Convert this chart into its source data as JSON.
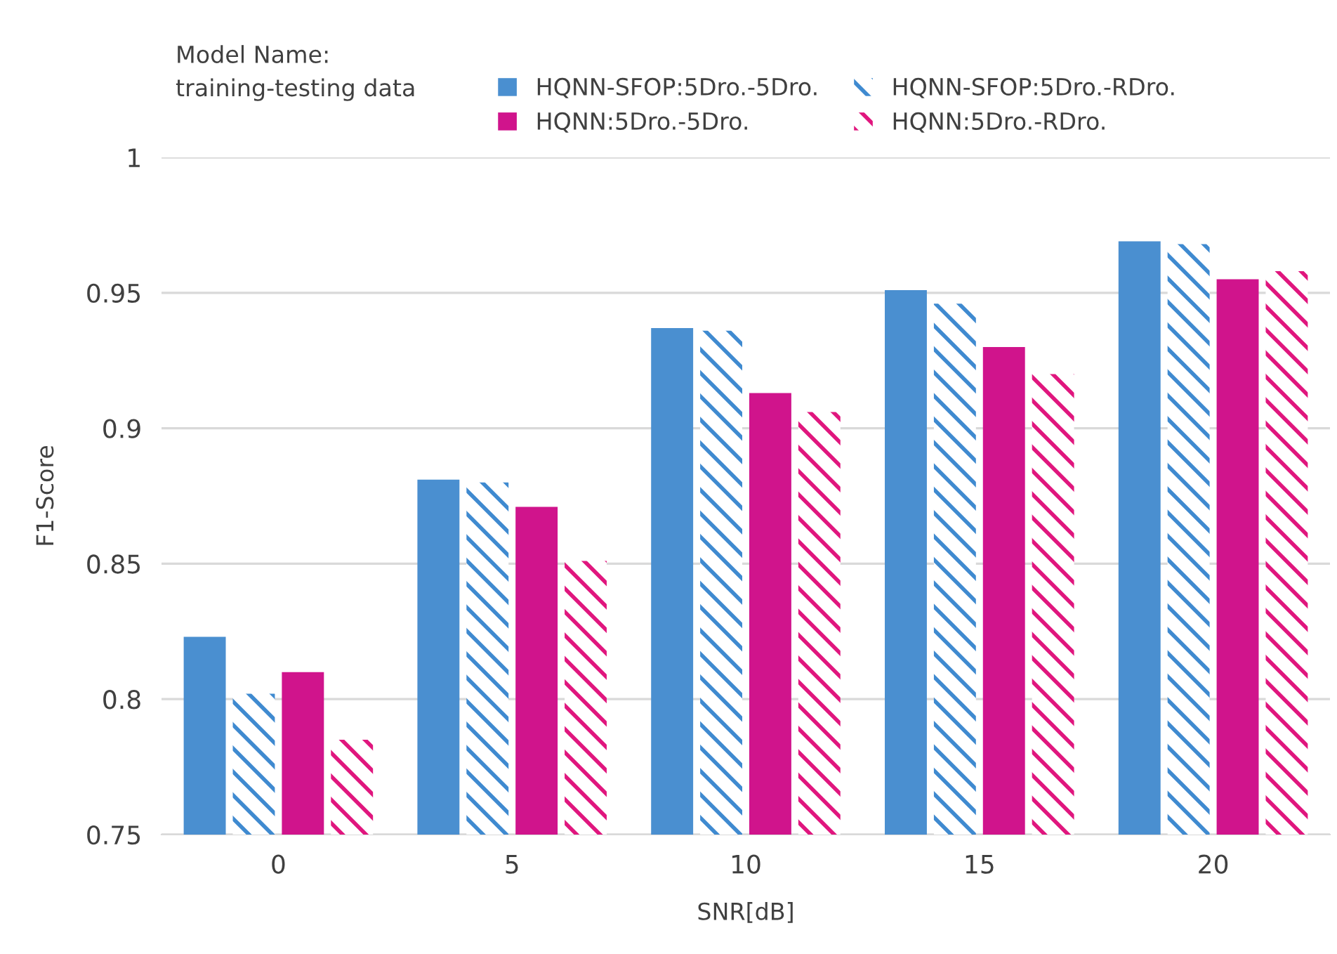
{
  "chart_data": {
    "type": "bar",
    "xlabel": "SNR[dB]",
    "ylabel": "F1-Score",
    "legend_title": "Model Name:\ntraining-testing data",
    "categories": [
      "0",
      "5",
      "10",
      "15",
      "20"
    ],
    "series": [
      {
        "name": "HQNN-SFOP:5Dro.-5Dro.",
        "color": "#4a8fd0",
        "values": [
          0.823,
          0.881,
          0.937,
          0.951,
          0.969
        ]
      },
      {
        "name": "HQNN-SFOP:5Dro.-RDro.",
        "color": "#3f8ad0",
        "values": [
          0.802,
          0.88,
          0.936,
          0.946,
          0.968
        ]
      },
      {
        "name": "HQNN:5Dro.-5Dro.",
        "color": "#d0148c",
        "values": [
          0.81,
          0.871,
          0.913,
          0.93,
          0.955
        ]
      },
      {
        "name": "HQNN:5Dro.-RDro.",
        "color": "#e0167e",
        "values": [
          0.785,
          0.851,
          0.906,
          0.92,
          0.958
        ]
      }
    ],
    "ylim": [
      0.75,
      1
    ],
    "yticks": [
      0.75,
      0.8,
      0.85,
      0.9,
      0.95,
      1
    ],
    "grid": "y",
    "legend": "top"
  }
}
